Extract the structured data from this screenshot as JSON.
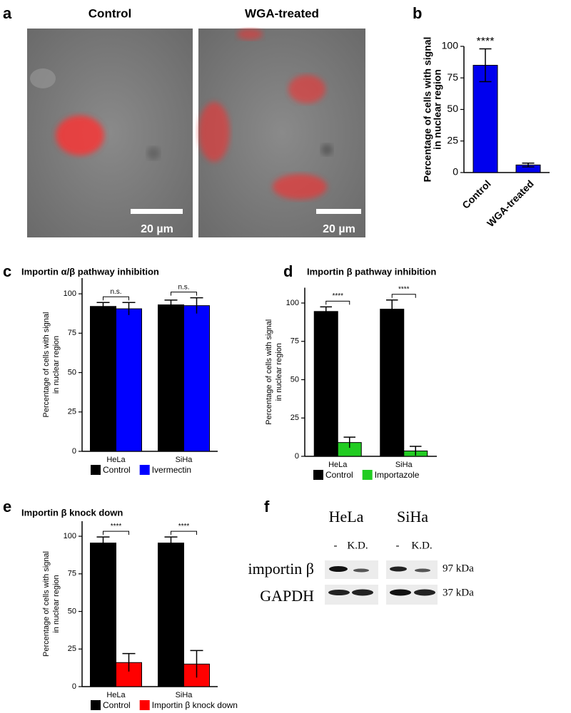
{
  "panels": {
    "a": {
      "letter": "a",
      "titles": [
        "Control",
        "WGA-treated"
      ],
      "scale_bars": [
        "20 µm",
        "20 µm"
      ]
    },
    "f": {
      "letter": "f",
      "cell_lines": [
        "HeLa",
        "SiHa"
      ],
      "lanes": [
        "-",
        "K.D.",
        "-",
        "K.D."
      ],
      "rows": [
        "importin β",
        "GAPDH"
      ],
      "sizes": [
        "97 kDa",
        "37 kDa"
      ]
    }
  },
  "chart_data": [
    {
      "type": "bar",
      "panel": "b",
      "ylabel_lines": [
        "Percentage of cells with signal",
        "in nuclear region"
      ],
      "categories": [
        "Control",
        "WGA-treated"
      ],
      "values": [
        85,
        6
      ],
      "errors": [
        13,
        1.5
      ],
      "color": "#0000ee",
      "significance": [
        "****",
        null
      ],
      "ylim": [
        0,
        100
      ],
      "yticks": [
        0,
        25,
        50,
        75,
        100
      ]
    },
    {
      "type": "bar",
      "panel": "c",
      "title": "Importin α/β pathway inhibition",
      "ylabel_lines": [
        "Percentage of cells with signal",
        "in nuclear region"
      ],
      "categories": [
        "HeLa",
        "SiHa"
      ],
      "series": [
        {
          "name": "Control",
          "color": "#000000",
          "values": [
            92,
            93
          ],
          "errors": [
            2.5,
            3
          ]
        },
        {
          "name": "Ivermectin",
          "color": "#0000ff",
          "values": [
            90.5,
            92.5
          ],
          "errors": [
            4,
            5
          ]
        }
      ],
      "significance": [
        "n.s.",
        "n.s."
      ],
      "ylim": [
        0,
        110
      ],
      "yticks": [
        0,
        25,
        50,
        75,
        100
      ]
    },
    {
      "type": "bar",
      "panel": "d",
      "title": "Importin β pathway inhibition",
      "ylabel_lines": [
        "Percentage of cells with signal",
        "in nuclear region"
      ],
      "categories": [
        "HeLa",
        "SiHa"
      ],
      "series": [
        {
          "name": "Control",
          "color": "#000000",
          "values": [
            94.5,
            96
          ],
          "errors": [
            3,
            6
          ]
        },
        {
          "name": "Importazole",
          "color": "#22cc22",
          "values": [
            9,
            3.5
          ],
          "errors": [
            3.5,
            3
          ]
        }
      ],
      "significance": [
        "****",
        "****"
      ],
      "ylim": [
        0,
        110
      ],
      "yticks": [
        0,
        25,
        50,
        75,
        100
      ]
    },
    {
      "type": "bar",
      "panel": "e",
      "title": "Importin β knock down",
      "ylabel_lines": [
        "Percentage of cells with signal",
        "in nuclear region"
      ],
      "categories": [
        "HeLa",
        "SiHa"
      ],
      "series": [
        {
          "name": "Control",
          "color": "#000000",
          "values": [
            95.5,
            95.5
          ],
          "errors": [
            4,
            4
          ]
        },
        {
          "name": "Importin β knock down",
          "color": "#ff0000",
          "values": [
            16,
            15
          ],
          "errors": [
            6,
            9
          ]
        }
      ],
      "significance": [
        "****",
        "****"
      ],
      "ylim": [
        0,
        110
      ],
      "yticks": [
        0,
        25,
        50,
        75,
        100
      ]
    }
  ]
}
